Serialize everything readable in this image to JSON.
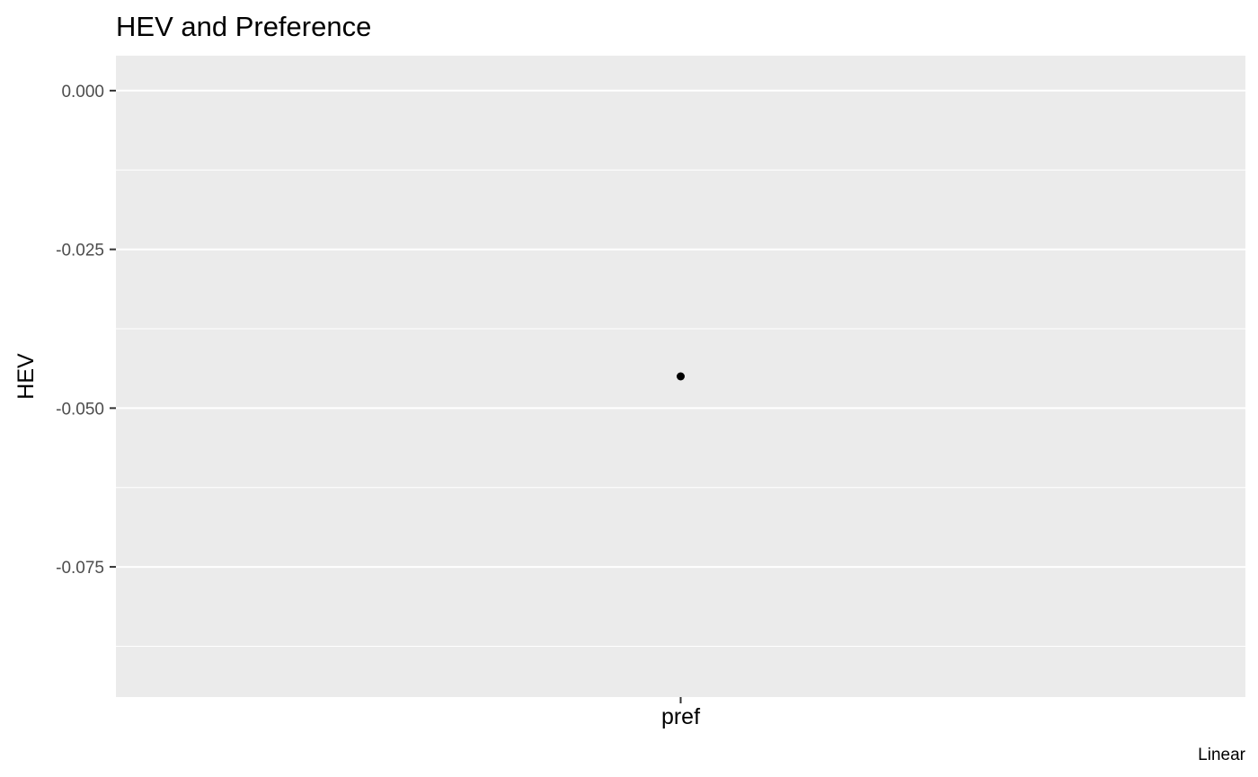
{
  "chart_data": {
    "type": "scatter",
    "title": "HEV and Preference",
    "xlabel": "",
    "ylabel": "HEV",
    "caption": "Linear",
    "categories": [
      "pref"
    ],
    "values": [
      -0.045
    ],
    "ylim": [
      -0.0955,
      0.0055
    ],
    "yticks": [
      0.0,
      -0.025,
      -0.05,
      -0.075
    ],
    "ytick_labels": [
      "0.000",
      "-0.025",
      "-0.050",
      "-0.075"
    ],
    "minor_grid": [
      -0.0125,
      -0.0375,
      -0.0625,
      -0.0875
    ],
    "grid": true,
    "colors": {
      "panel": "#ebebeb",
      "gridline": "#ffffff",
      "point": "#000000",
      "tick_label": "#4d4d4d"
    }
  }
}
